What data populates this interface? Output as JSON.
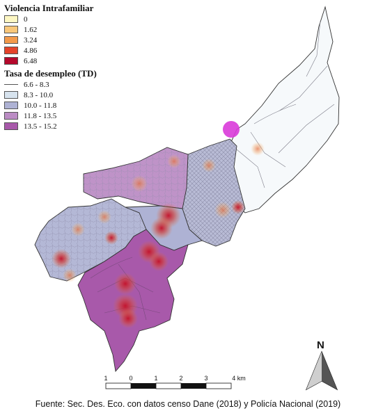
{
  "legend_violence": {
    "title": "Violencia Intrafamiliar",
    "items": [
      {
        "label": "0",
        "color": "#fdf7c3"
      },
      {
        "label": "1.62",
        "color": "#f9c77a"
      },
      {
        "label": "3.24",
        "color": "#f39a4b"
      },
      {
        "label": "4.86",
        "color": "#e4432a"
      },
      {
        "label": "6.48",
        "color": "#b4082b"
      }
    ]
  },
  "legend_unemployment": {
    "title": "Tasa de desempleo (TD)",
    "items": [
      {
        "label": "6.6 - 8.3",
        "color": "#ffffff",
        "style": "line"
      },
      {
        "label": "8.3 - 10.0",
        "color": "#d7e3ee"
      },
      {
        "label": "10.0 - 11.8",
        "color": "#aeb2d4"
      },
      {
        "label": "11.8 - 13.5",
        "color": "#bb8cc4"
      },
      {
        "label": "13.5 - 15.2",
        "color": "#a859aa"
      }
    ]
  },
  "scale_bar": {
    "labels": [
      "1",
      "0",
      "1",
      "2",
      "3",
      "4 km"
    ]
  },
  "north_arrow": {
    "label": "N",
    "icon": "north-arrow-icon"
  },
  "source": "Fuente: Sec. Des. Eco. con datos censo Dane (2018) y Policía Nacional (2019)"
}
